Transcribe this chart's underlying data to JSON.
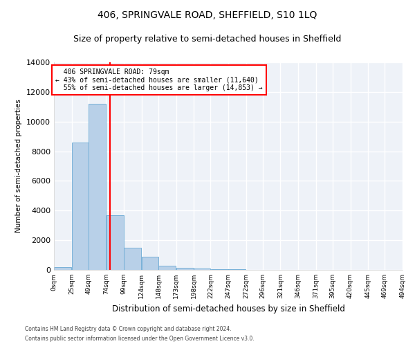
{
  "title": "406, SPRINGVALE ROAD, SHEFFIELD, S10 1LQ",
  "subtitle": "Size of property relative to semi-detached houses in Sheffield",
  "xlabel": "Distribution of semi-detached houses by size in Sheffield",
  "ylabel": "Number of semi-detached properties",
  "footnote1": "Contains HM Land Registry data © Crown copyright and database right 2024.",
  "footnote2": "Contains public sector information licensed under the Open Government Licence v3.0.",
  "property_size": 79,
  "property_label": "406 SPRINGVALE ROAD: 79sqm",
  "pct_smaller": 43,
  "pct_larger": 55,
  "n_smaller": 11640,
  "n_larger": 14853,
  "bar_color": "#b8d0e8",
  "bar_edge_color": "#6aaad4",
  "vline_color": "red",
  "bin_edges": [
    0,
    25,
    49,
    74,
    99,
    124,
    148,
    173,
    198,
    222,
    247,
    272,
    296,
    321,
    346,
    371,
    395,
    420,
    445,
    469,
    494
  ],
  "bin_labels": [
    "0sqm",
    "25sqm",
    "49sqm",
    "74sqm",
    "99sqm",
    "124sqm",
    "148sqm",
    "173sqm",
    "198sqm",
    "222sqm",
    "247sqm",
    "272sqm",
    "296sqm",
    "321sqm",
    "346sqm",
    "371sqm",
    "395sqm",
    "420sqm",
    "445sqm",
    "469sqm",
    "494sqm"
  ],
  "bar_heights": [
    200,
    8600,
    11200,
    3700,
    1500,
    900,
    300,
    150,
    80,
    50,
    30,
    10,
    5,
    3,
    2,
    1,
    0,
    0,
    0,
    0
  ],
  "ylim": [
    0,
    14000
  ],
  "yticks": [
    0,
    2000,
    4000,
    6000,
    8000,
    10000,
    12000,
    14000
  ],
  "background_color": "#eef2f8",
  "grid_color": "#ffffff",
  "title_fontsize": 10,
  "subtitle_fontsize": 9,
  "figsize": [
    6.0,
    5.0
  ],
  "dpi": 100
}
